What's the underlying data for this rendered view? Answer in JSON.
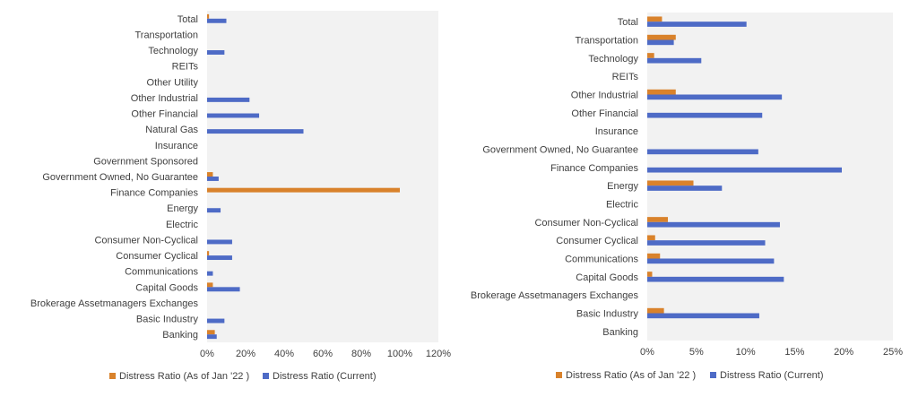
{
  "colors": {
    "series1": "#d9822b",
    "series2": "#4e6bc6",
    "plot_bg": "#f2f2f2",
    "text": "#404040"
  },
  "chart_data": [
    {
      "type": "bar",
      "orientation": "horizontal",
      "categories": [
        "Total",
        "Transportation",
        "Technology",
        "REITs",
        "Other Utility",
        "Other Industrial",
        "Other Financial",
        "Natural Gas",
        "Insurance",
        "Government Sponsored",
        "Government Owned, No Guarantee",
        "Finance Companies",
        "Energy",
        "Electric",
        "Consumer Non-Cyclical",
        "Consumer Cyclical",
        "Communications",
        "Capital Goods",
        "Brokerage Assetmanagers Exchanges",
        "Basic Industry",
        "Banking"
      ],
      "series": [
        {
          "name": "Distress Ratio (As of Jan '22 )",
          "values": [
            1,
            0,
            0,
            0,
            0,
            0,
            0,
            0,
            0,
            0,
            3,
            100,
            0,
            0,
            0,
            1,
            0,
            3,
            0,
            0,
            4
          ]
        },
        {
          "name": "Distress Ratio (Current)",
          "values": [
            10,
            0,
            9,
            0,
            0,
            22,
            27,
            50,
            0,
            0,
            6,
            0,
            7,
            0,
            13,
            13,
            3,
            17,
            0,
            9,
            5
          ]
        }
      ],
      "xlim": [
        0,
        120
      ],
      "xticks": [
        "0%",
        "20%",
        "40%",
        "60%",
        "80%",
        "100%",
        "120%"
      ],
      "legend": "bottom"
    },
    {
      "type": "bar",
      "orientation": "horizontal",
      "categories": [
        "Total",
        "Transportation",
        "Technology",
        "REITs",
        "Other Industrial",
        "Other Financial",
        "Insurance",
        "Government Owned, No Guarantee",
        "Finance Companies",
        "Energy",
        "Electric",
        "Consumer Non-Cyclical",
        "Consumer Cyclical",
        "Communications",
        "Capital Goods",
        "Brokerage Assetmanagers Exchanges",
        "Basic Industry",
        "Banking"
      ],
      "series": [
        {
          "name": "Distress Ratio (As of Jan '22 )",
          "values": [
            1.5,
            2.9,
            0.7,
            0,
            2.9,
            0,
            0,
            0,
            0,
            4.7,
            0,
            2.1,
            0.8,
            1.3,
            0.5,
            0,
            1.7,
            0
          ]
        },
        {
          "name": "Distress Ratio (Current)",
          "values": [
            10.1,
            2.7,
            5.5,
            0,
            13.7,
            11.7,
            0,
            11.3,
            19.8,
            7.6,
            0,
            13.5,
            12.0,
            12.9,
            13.9,
            0,
            11.4,
            0
          ]
        }
      ],
      "xlim": [
        0,
        25
      ],
      "xticks": [
        "0%",
        "5%",
        "10%",
        "15%",
        "20%",
        "25%"
      ],
      "legend": "bottom"
    }
  ]
}
